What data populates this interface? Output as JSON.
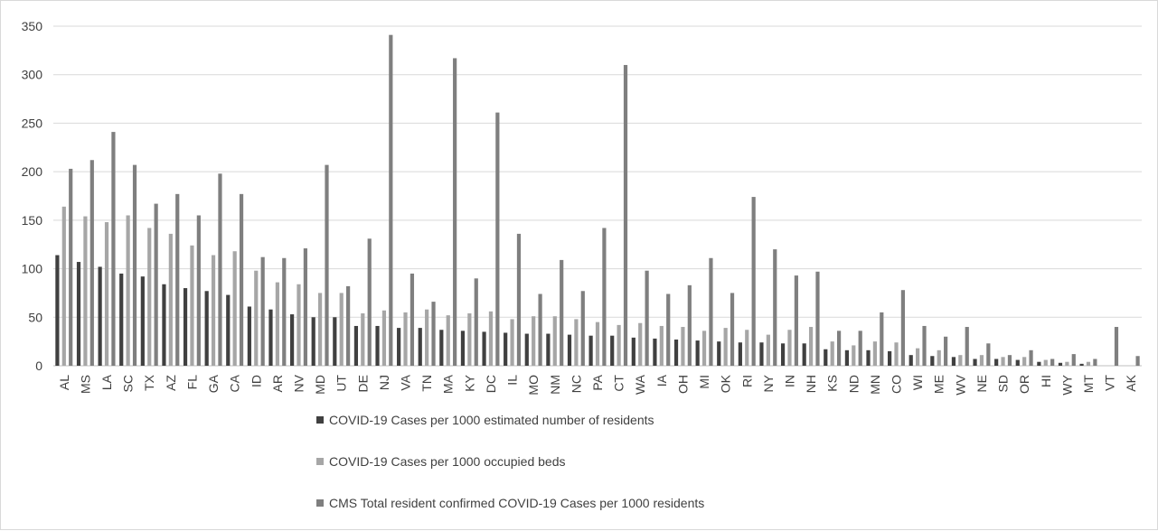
{
  "chart_data": {
    "type": "bar",
    "title": "",
    "xlabel": "",
    "ylabel": "",
    "ylim": [
      0,
      350
    ],
    "yticks": [
      0,
      50,
      100,
      150,
      200,
      250,
      300,
      350
    ],
    "grid": true,
    "legend_position": "bottom",
    "categories": [
      "AL",
      "MS",
      "LA",
      "SC",
      "TX",
      "AZ",
      "FL",
      "GA",
      "CA",
      "ID",
      "AR",
      "NV",
      "MD",
      "UT",
      "DE",
      "NJ",
      "VA",
      "TN",
      "MA",
      "KY",
      "DC",
      "IL",
      "MO",
      "NM",
      "NC",
      "PA",
      "CT",
      "WA",
      "IA",
      "OH",
      "MI",
      "OK",
      "RI",
      "NY",
      "IN",
      "NH",
      "KS",
      "ND",
      "MN",
      "CO",
      "WI",
      "ME",
      "WV",
      "NE",
      "SD",
      "OR",
      "HI",
      "WY",
      "MT",
      "VT",
      "AK"
    ],
    "series": [
      {
        "name": "COVID-19 Cases per 1000 estimated number of residents",
        "color": "#404040",
        "values": [
          114,
          107,
          102,
          95,
          92,
          84,
          80,
          77,
          73,
          61,
          58,
          53,
          50,
          50,
          41,
          41,
          39,
          39,
          37,
          36,
          35,
          34,
          33,
          33,
          32,
          31,
          31,
          29,
          28,
          27,
          26,
          25,
          24,
          24,
          23,
          23,
          17,
          16,
          16,
          15,
          11,
          10,
          9,
          7,
          7,
          6,
          4,
          3,
          2,
          0,
          0
        ]
      },
      {
        "name": "COVID-19 Cases per 1000 occupied beds",
        "color": "#a6a6a6",
        "values": [
          164,
          154,
          148,
          155,
          142,
          136,
          124,
          114,
          118,
          98,
          86,
          84,
          75,
          75,
          54,
          57,
          55,
          58,
          52,
          54,
          56,
          48,
          51,
          51,
          48,
          45,
          42,
          44,
          41,
          40,
          36,
          39,
          37,
          32,
          37,
          40,
          25,
          21,
          25,
          24,
          18,
          16,
          11,
          11,
          9,
          9,
          6,
          4,
          4,
          0,
          0
        ]
      },
      {
        "name": "CMS Total resident confirmed COVID-19 Cases per 1000 residents",
        "color": "#7f7f7f",
        "values": [
          203,
          212,
          241,
          207,
          167,
          177,
          155,
          198,
          177,
          112,
          111,
          121,
          207,
          82,
          131,
          341,
          95,
          66,
          317,
          90,
          261,
          136,
          74,
          109,
          77,
          142,
          310,
          98,
          74,
          83,
          111,
          75,
          174,
          120,
          93,
          97,
          36,
          36,
          55,
          78,
          41,
          30,
          40,
          23,
          11,
          16,
          7,
          12,
          7,
          40,
          10
        ]
      }
    ]
  }
}
